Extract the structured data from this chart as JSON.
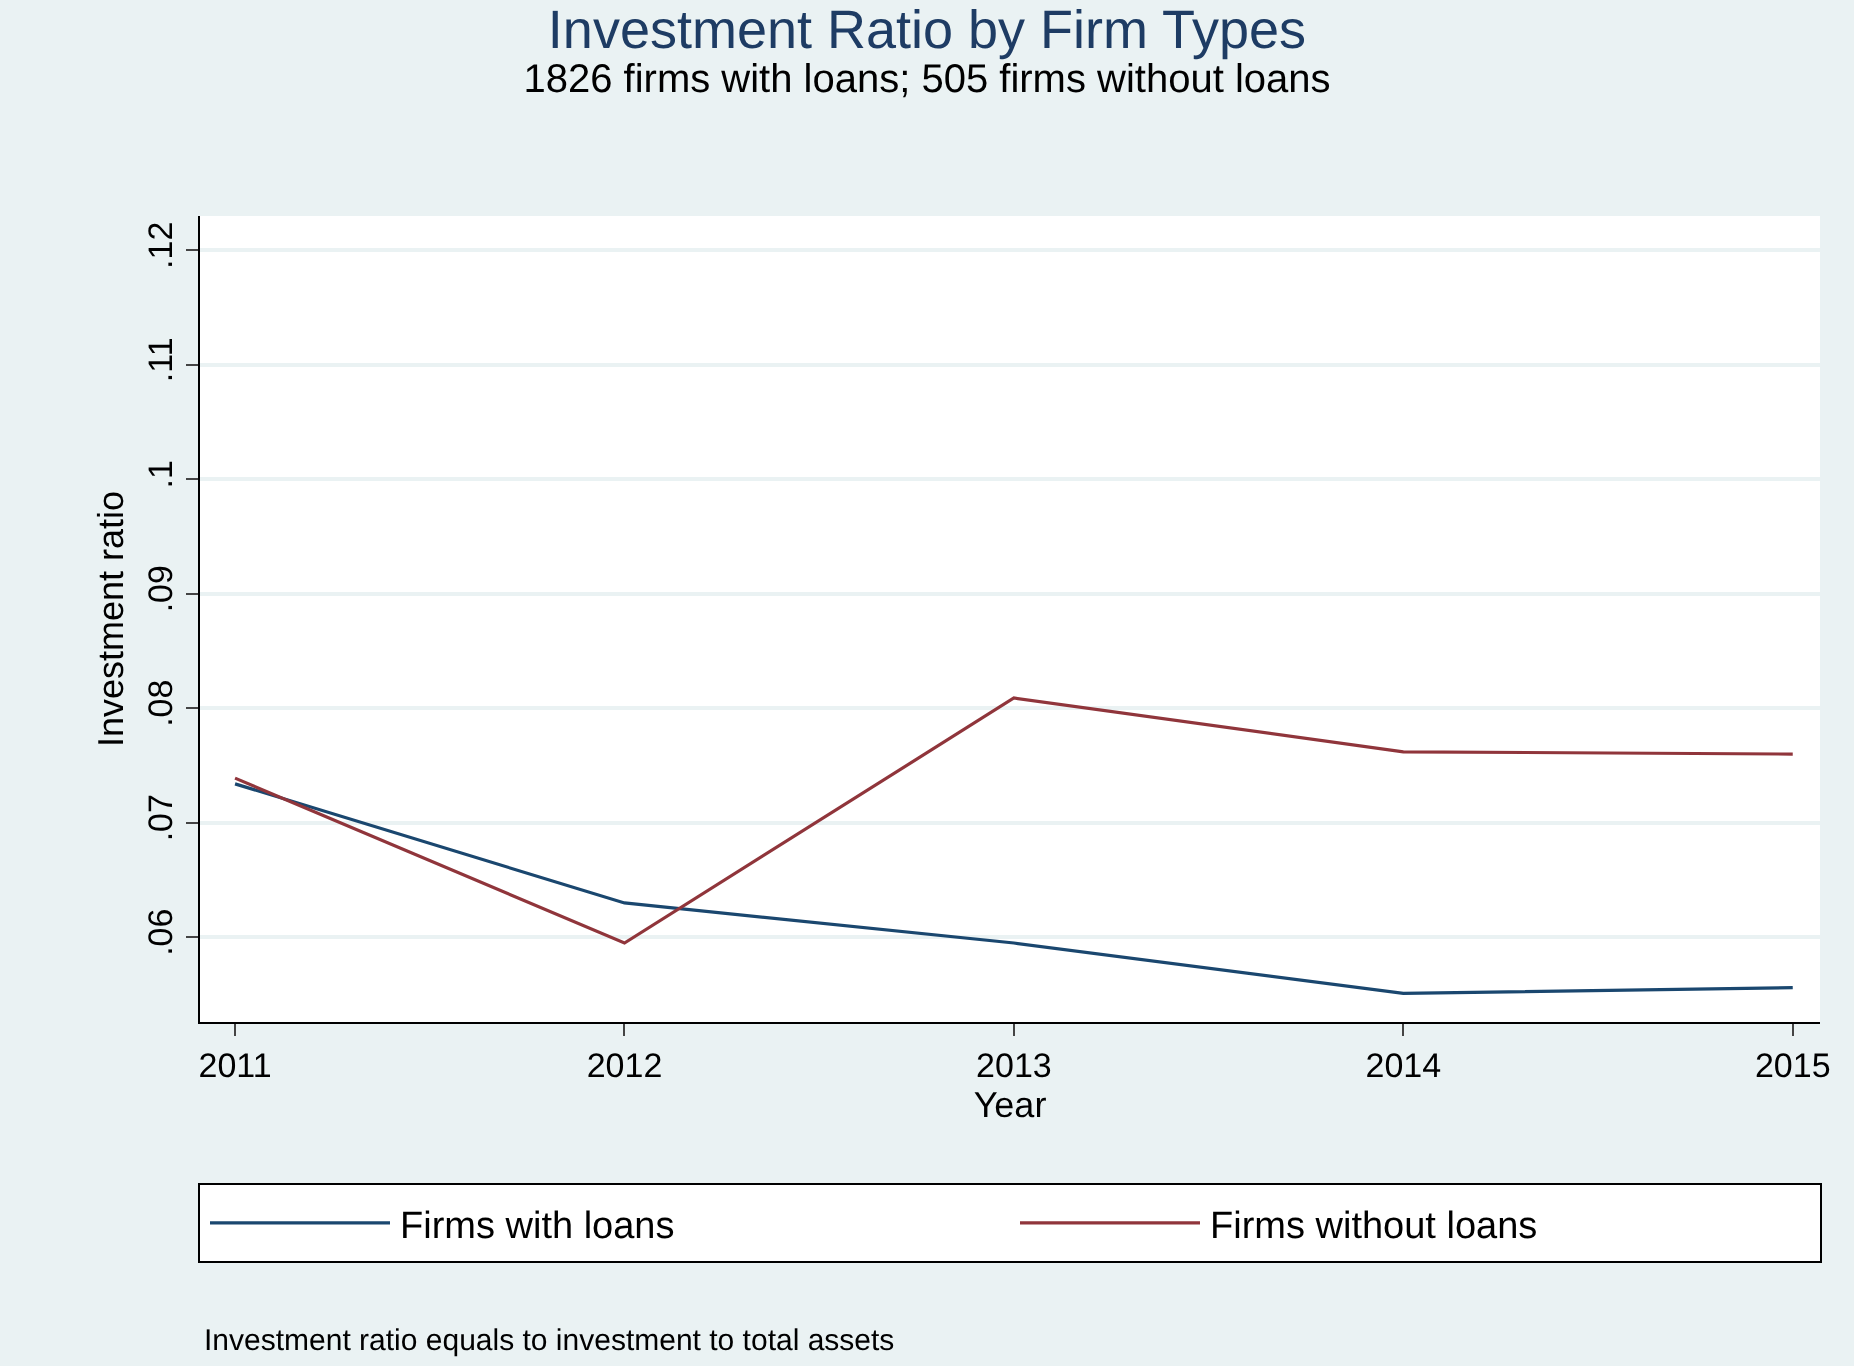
{
  "chart_data": {
    "type": "line",
    "title": "Investment Ratio by Firm Types",
    "subtitle": "1826 firms with loans; 505 firms without loans",
    "xlabel": "Year",
    "ylabel": "Investment ratio",
    "x": [
      2011,
      2012,
      2013,
      2014,
      2015
    ],
    "series": [
      {
        "name": "Firms with loans",
        "color": "#1a476f",
        "values": [
          0.0734,
          0.063,
          0.0595,
          0.0551,
          0.0556
        ]
      },
      {
        "name": "Firms without loans",
        "color": "#90353b",
        "values": [
          0.0739,
          0.0595,
          0.0809,
          0.0762,
          0.076
        ]
      }
    ],
    "xlim": [
      2010.91,
      2015.07
    ],
    "xticks": [
      2011,
      2012,
      2013,
      2014,
      2015
    ],
    "ylim": [
      0.0526,
      0.123
    ],
    "yticks": [
      {
        "value": 0.06,
        "label": ".06"
      },
      {
        "value": 0.07,
        "label": ".07"
      },
      {
        "value": 0.08,
        "label": ".08"
      },
      {
        "value": 0.09,
        "label": ".09"
      },
      {
        "value": 0.1,
        "label": ".1"
      },
      {
        "value": 0.11,
        "label": ".11"
      },
      {
        "value": 0.12,
        "label": ".12"
      }
    ],
    "grid": "y",
    "legend": "bottom",
    "marker": "none",
    "line_style": "solid",
    "annotations": [
      "Investment ratio equals to investment to total assets"
    ]
  }
}
